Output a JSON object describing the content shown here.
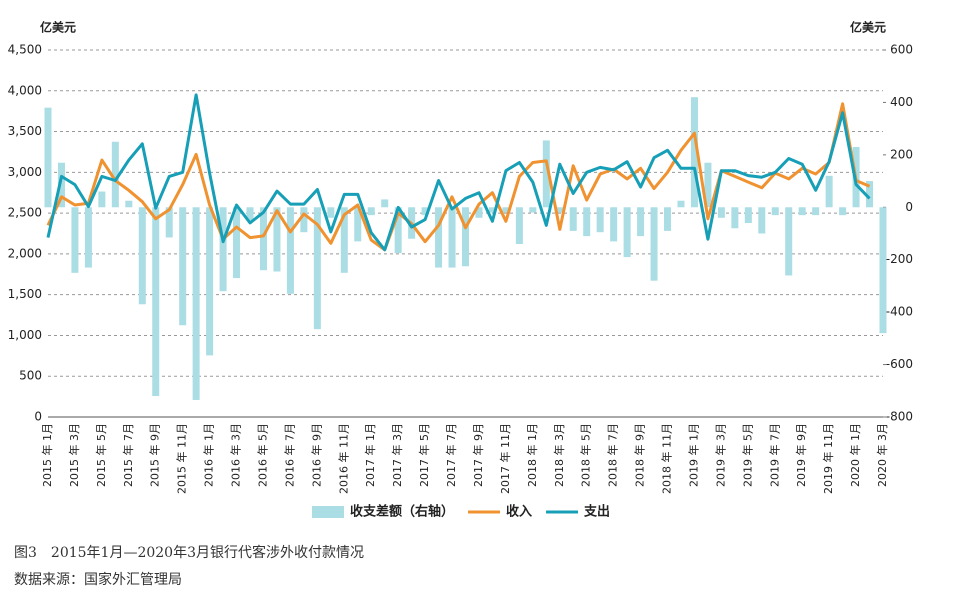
{
  "chart_data": {
    "type": "line",
    "y_label": "亿美元",
    "y2_label": "亿美元",
    "caption": "图3　2015年1月—2020年3月银行代客涉外收付款情况",
    "source": "数据来源：国家外汇管理局",
    "categories": [
      "2015 年 1月",
      null,
      "2015 年 3月",
      null,
      "2015 年 5月",
      null,
      "2015 年 7月",
      null,
      "2015 年 9月",
      null,
      "2015 年 11月",
      null,
      "2016 年 1月",
      null,
      "2016 年 3月",
      null,
      "2016 年 5月",
      null,
      "2016 年 7月",
      null,
      "2016 年 9月",
      null,
      "2016 年 11月",
      null,
      "2017 年 1月",
      null,
      "2017 年 3月",
      null,
      "2017 年 5月",
      null,
      "2017 年 7月",
      null,
      "2017 年 9月",
      null,
      "2017 年 11月",
      null,
      "2018 年 1月",
      null,
      "2018 年 3月",
      null,
      "2018 年 5月",
      null,
      "2018 年 7月",
      null,
      "2018 年 9月",
      null,
      "2018 年 11月",
      null,
      "2019 年 1月",
      null,
      "2019 年 3月",
      null,
      "2019 年 5月",
      null,
      "2019 年 7月",
      null,
      "2019 年 9月",
      null,
      "2019 年 11月",
      null,
      "2020 年 1月",
      null,
      "2020 年 3月"
    ],
    "series": [
      {
        "name": "收支差额（右轴）",
        "type": "bar",
        "axis": "y2",
        "color": "#aadde4",
        "values": [
          380,
          170,
          -250,
          -230,
          60,
          250,
          25,
          -370,
          -720,
          -115,
          -450,
          -735,
          -565,
          -320,
          -270,
          -50,
          -240,
          -245,
          -330,
          -95,
          -465,
          -40,
          -250,
          -130,
          -30,
          30,
          -175,
          -120,
          -30,
          -230,
          -230,
          -225,
          -40,
          -20,
          -20,
          -140,
          -20,
          255,
          -20,
          -90,
          -110,
          -95,
          -130,
          -190,
          -110,
          -280,
          -90,
          25,
          420,
          170,
          -40,
          -80,
          -60,
          -100,
          -30,
          -260,
          -30,
          -30,
          120,
          -30,
          230,
          100,
          -480
        ]
      },
      {
        "name": "收入",
        "type": "line",
        "color": "#f0922f",
        "values": [
          2350,
          2700,
          2600,
          2620,
          3150,
          2900,
          2780,
          2640,
          2430,
          2540,
          2850,
          3220,
          2600,
          2180,
          2330,
          2200,
          2220,
          2530,
          2270,
          2490,
          2360,
          2130,
          2480,
          2600,
          2170,
          2050,
          2500,
          2370,
          2150,
          2350,
          2700,
          2320,
          2610,
          2750,
          2400,
          2950,
          3120,
          3140,
          2300,
          3080,
          2660,
          2980,
          3040,
          2920,
          3050,
          2800,
          3000,
          3270,
          3480,
          2430,
          3020,
          2950,
          2880,
          2810,
          2990,
          2920,
          3050,
          2980,
          3120,
          3840,
          2900,
          2830,
          null
        ]
      },
      {
        "name": "支出",
        "type": "line",
        "color": "#169fb6",
        "values": [
          2200,
          2950,
          2850,
          2580,
          2950,
          2900,
          3150,
          3350,
          2560,
          2950,
          3000,
          3950,
          2990,
          2150,
          2600,
          2380,
          2510,
          2770,
          2610,
          2610,
          2790,
          2270,
          2730,
          2730,
          2260,
          2050,
          2570,
          2330,
          2420,
          2900,
          2550,
          2680,
          2750,
          2400,
          3020,
          3120,
          2880,
          2350,
          3100,
          2740,
          3000,
          3060,
          3030,
          3130,
          2820,
          3180,
          3270,
          3050,
          3050,
          2180,
          3020,
          3020,
          2960,
          2940,
          3000,
          3170,
          3100,
          2780,
          3130,
          3730,
          2850,
          2680,
          null
        ]
      }
    ],
    "ylim": [
      0,
      4500
    ],
    "yticks": [
      0,
      500,
      {
        "value": 1000,
        "label": "1,000"
      },
      {
        "value": 1500,
        "label": "1,500"
      },
      {
        "value": 2000,
        "label": "2,000"
      },
      {
        "value": 2500,
        "label": "2,500"
      },
      {
        "value": 3000,
        "label": "3,000"
      },
      {
        "value": 3500,
        "label": "3,500"
      },
      {
        "value": 4000,
        "label": "4,000"
      },
      {
        "value": 4500,
        "label": "4,500"
      }
    ],
    "y2lim": [
      -800,
      600
    ],
    "y2ticks": [
      -800,
      -600,
      -400,
      -200,
      0,
      200,
      400,
      600
    ],
    "grid": true,
    "legend": "bottom"
  }
}
